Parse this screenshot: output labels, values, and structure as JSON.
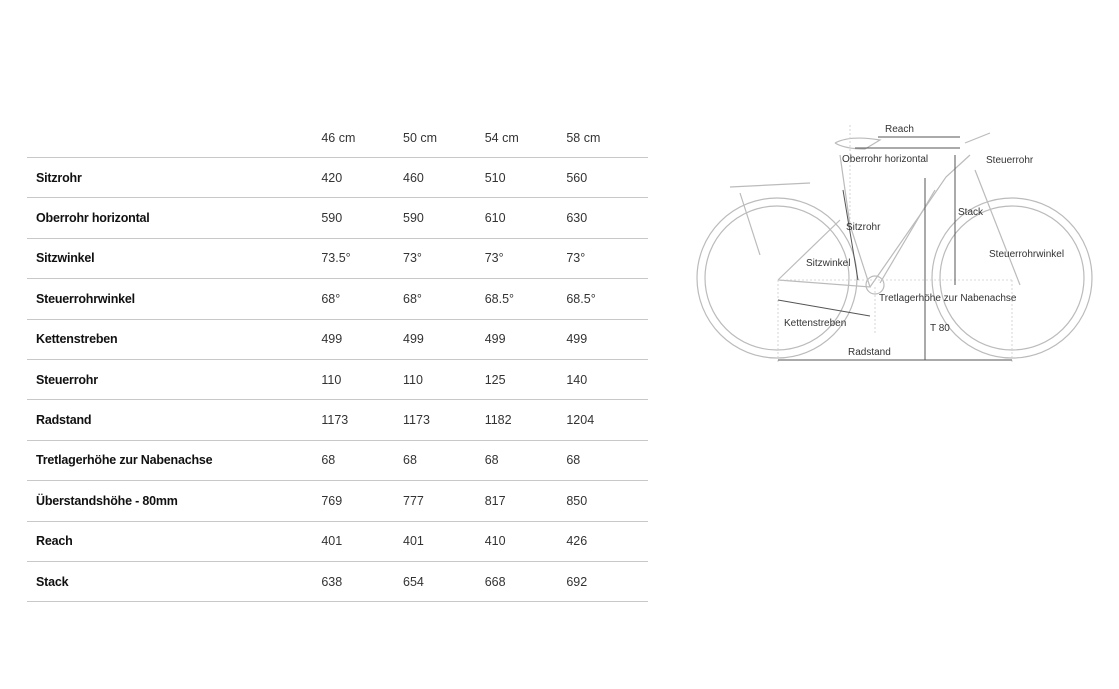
{
  "table": {
    "columns": [
      "46 cm",
      "50 cm",
      "54 cm",
      "58 cm"
    ],
    "rows": [
      {
        "label": "Sitzrohr",
        "values": [
          "420",
          "460",
          "510",
          "560"
        ]
      },
      {
        "label": "Oberrohr horizontal",
        "values": [
          "590",
          "590",
          "610",
          "630"
        ]
      },
      {
        "label": "Sitzwinkel",
        "values": [
          "73.5°",
          "73°",
          "73°",
          "73°"
        ]
      },
      {
        "label": "Steuerrohrwinkel",
        "values": [
          "68°",
          "68°",
          "68.5°",
          "68.5°"
        ]
      },
      {
        "label": "Kettenstreben",
        "values": [
          "499",
          "499",
          "499",
          "499"
        ]
      },
      {
        "label": "Steuerrohr",
        "values": [
          "110",
          "110",
          "125",
          "140"
        ]
      },
      {
        "label": "Radstand",
        "values": [
          "1173",
          "1173",
          "1182",
          "1204"
        ]
      },
      {
        "label": "Tretlagerhöhe zur Nabenachse",
        "values": [
          "68",
          "68",
          "68",
          "68"
        ]
      },
      {
        "label": "Überstandshöhe - 80mm",
        "values": [
          "769",
          "777",
          "817",
          "850"
        ]
      },
      {
        "label": "Reach",
        "values": [
          "401",
          "401",
          "410",
          "426"
        ]
      },
      {
        "label": "Stack",
        "values": [
          "638",
          "654",
          "668",
          "692"
        ]
      }
    ]
  },
  "diagram": {
    "labels": {
      "reach": "Reach",
      "top_tube": "Oberrohr horizontal",
      "head_tube": "Steuerrohr",
      "stack": "Stack",
      "seat_tube": "Sitzrohr",
      "seat_angle": "Sitzwinkel",
      "head_angle": "Steuerrohrwinkel",
      "bb_drop": "Tretlagerhöhe zur Nabenachse",
      "chainstay": "Kettenstreben",
      "standover": "T 80",
      "wheelbase": "Radstand"
    }
  }
}
